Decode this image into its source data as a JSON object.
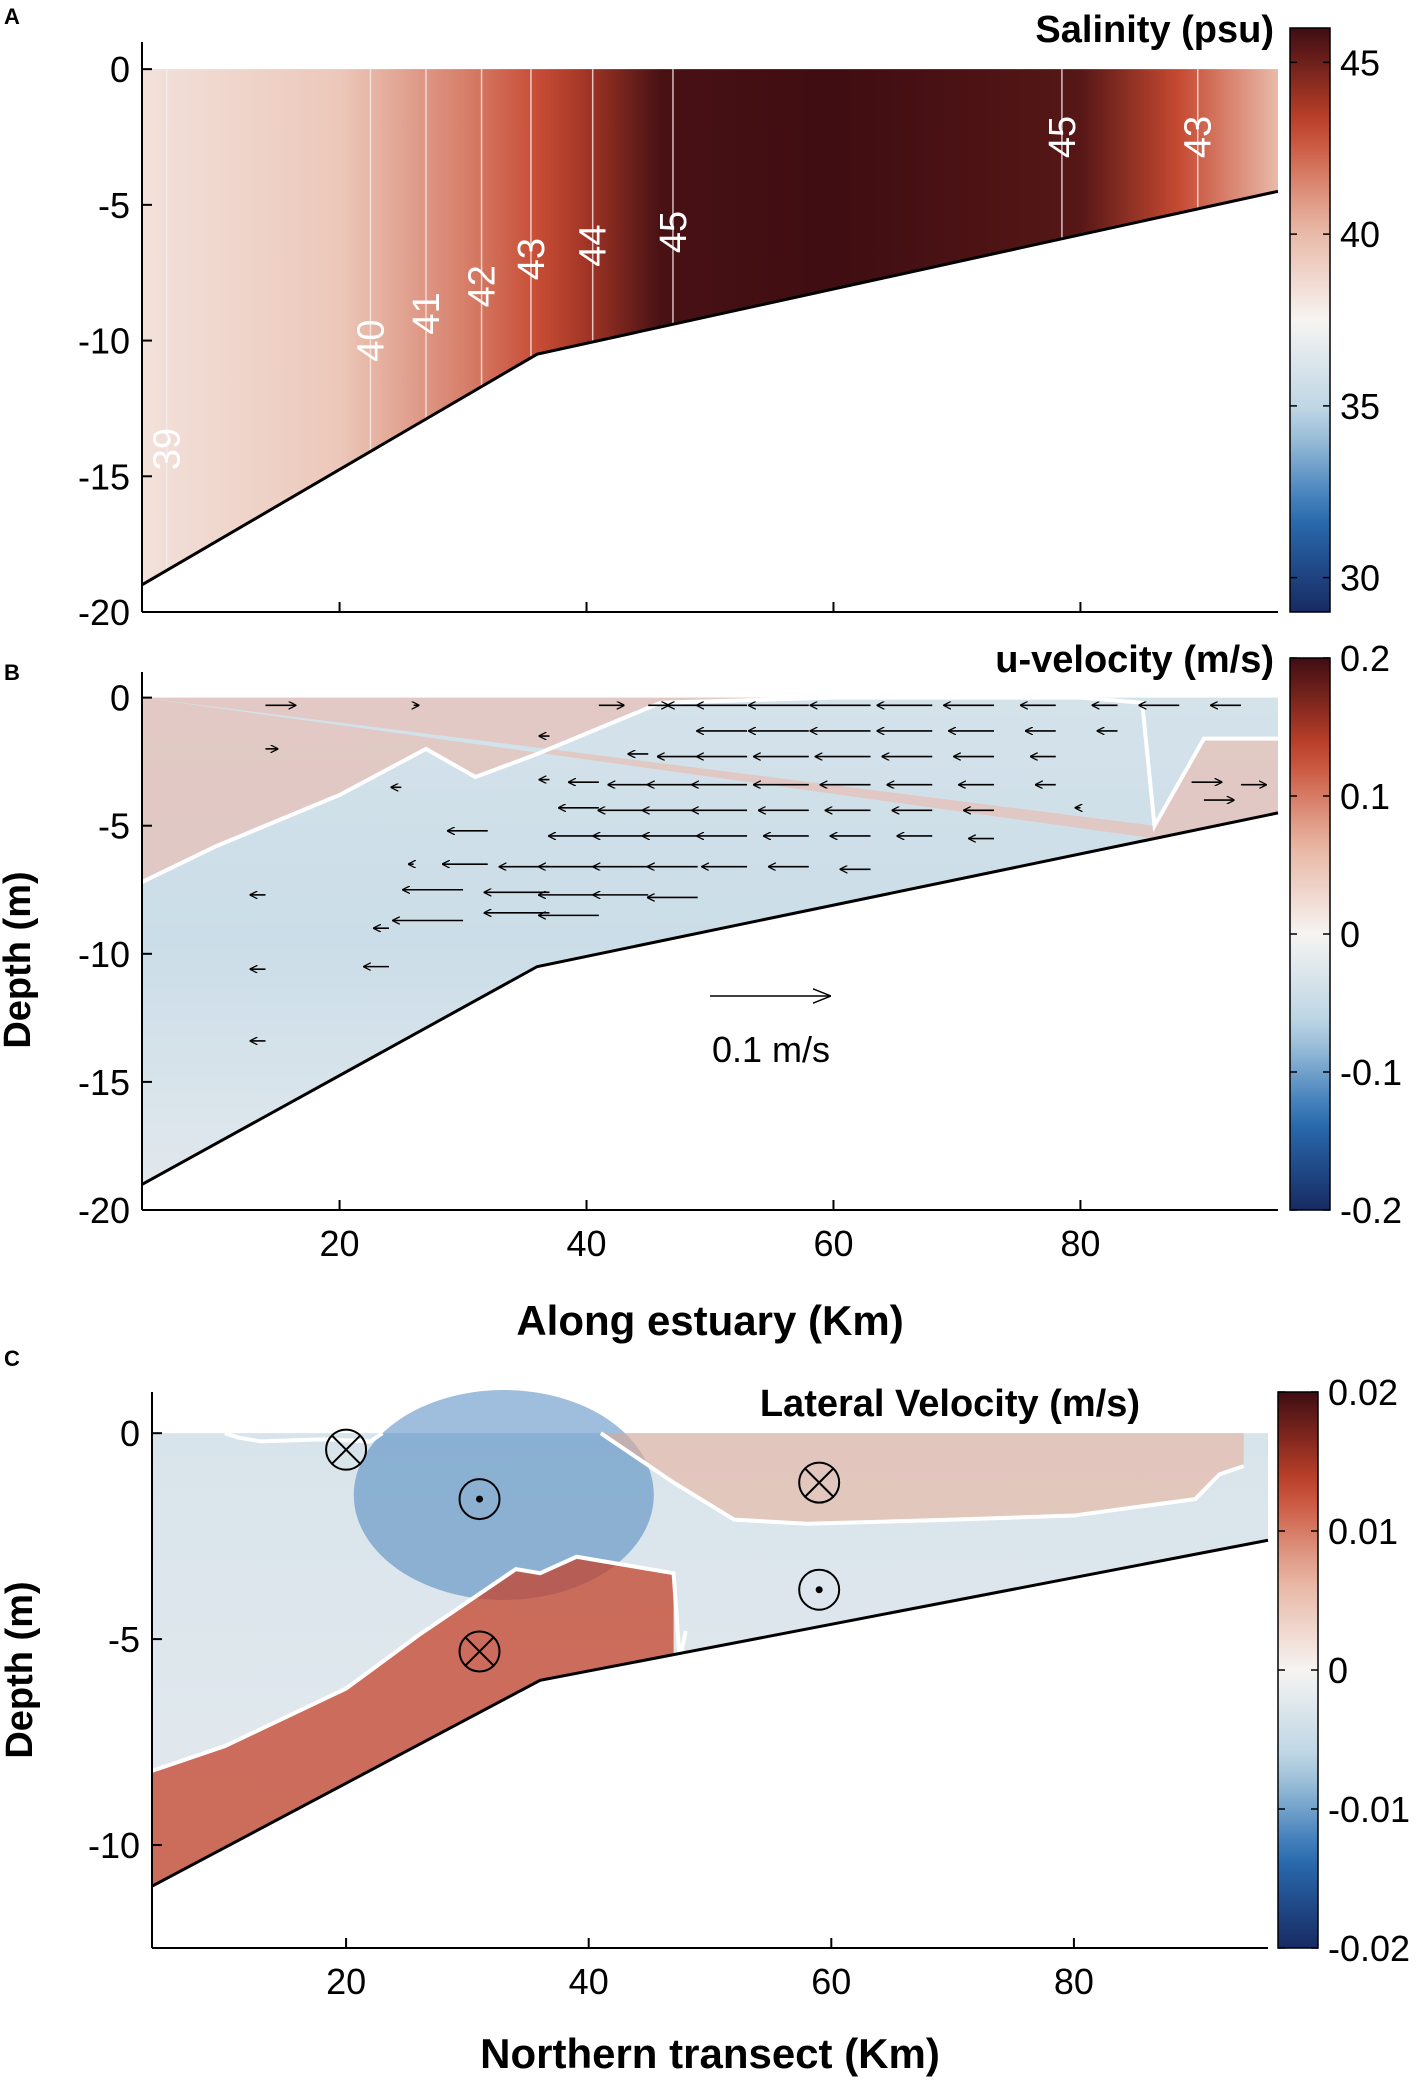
{
  "colors": {
    "neg_deep": "#182a63",
    "neg_mid": "#2a6fb3",
    "neg_light": "#b9d3e3",
    "neutral": "#f6f4f2",
    "pos_light": "#e7b29f",
    "pos_mid": "#c4432b",
    "pos_deep": "#3f0d12",
    "white": "#ffffff",
    "ink": "#000000",
    "contour": "#f4ecea"
  },
  "chart_data": [
    {
      "type": "heatmap",
      "panel_label": "A",
      "title": "Salinity (psu)",
      "xlabel": "",
      "ylabel": "",
      "xlim": [
        4,
        96
      ],
      "ylim": [
        -20,
        1
      ],
      "xticks": [
        20,
        40,
        60,
        80
      ],
      "yticks": [
        0,
        -5,
        -10,
        -15,
        -20
      ],
      "ytick_labels": [
        "0",
        "-5",
        "-10",
        "-15",
        "-20"
      ],
      "colorbar": {
        "min": 29,
        "max": 46,
        "ticks": [
          30,
          35,
          40,
          45
        ],
        "tick_labels": [
          "30",
          "35",
          "40",
          "45"
        ]
      },
      "bottom_profile": {
        "x": [
          4,
          36,
          96
        ],
        "depth": [
          -19,
          -10.5,
          -4.5
        ]
      },
      "field": {
        "x": [
          4,
          20,
          30,
          36,
          40,
          46,
          60,
          80,
          88,
          96
        ],
        "value": [
          38.3,
          39.4,
          41.6,
          42.9,
          43.9,
          45.8,
          46,
          45.5,
          43,
          40
        ]
      },
      "contours": [
        {
          "label": "39",
          "x": 6,
          "label_x": 6,
          "label_depth": -14
        },
        {
          "label": "40",
          "x": 22.5,
          "label_x": 22.5,
          "label_depth": -10
        },
        {
          "label": "41",
          "x": 27,
          "label_x": 27,
          "label_depth": -9
        },
        {
          "label": "42",
          "x": 31.5,
          "label_x": 31.5,
          "label_depth": -8
        },
        {
          "label": "43",
          "x": 35.5,
          "label_x": 35.5,
          "label_depth": -7
        },
        {
          "label": "44",
          "x": 40.5,
          "label_x": 40.5,
          "label_depth": -6.5
        },
        {
          "label": "45",
          "x": 47,
          "label_x": 47,
          "label_depth": -6
        },
        {
          "label": "45",
          "x": 78.5,
          "label_x": 78.5,
          "label_depth": -2.5
        },
        {
          "label": "43",
          "x": 89.5,
          "label_x": 89.5,
          "label_depth": -2.5
        }
      ]
    },
    {
      "type": "heatmap",
      "panel_label": "B",
      "title": "u-velocity (m/s)",
      "xlabel": "Along estuary (Km)",
      "ylabel": "Depth (m)",
      "xlim": [
        4,
        96
      ],
      "ylim": [
        -20,
        1
      ],
      "xticks": [
        20,
        40,
        60,
        80
      ],
      "xtick_labels": [
        "20",
        "40",
        "60",
        "80"
      ],
      "yticks": [
        0,
        -5,
        -10,
        -15,
        -20
      ],
      "ytick_labels": [
        "0",
        "-5",
        "-10",
        "-15",
        "-20"
      ],
      "colorbar": {
        "min": -0.2,
        "max": 0.2,
        "ticks": [
          0.2,
          0.1,
          0,
          -0.1,
          -0.2
        ],
        "tick_labels": [
          "0.2",
          "0.1",
          "0",
          "-0.1",
          "-0.2"
        ]
      },
      "bottom_profile": {
        "x": [
          4,
          36,
          96
        ],
        "depth": [
          -19,
          -10.5,
          -4.5
        ]
      },
      "zero_contour": {
        "x": [
          4,
          10,
          20,
          27,
          31,
          36,
          46,
          60,
          80,
          85,
          86,
          90,
          96
        ],
        "depth": [
          -7.2,
          -5.8,
          -3.8,
          -2,
          -3.1,
          -2.2,
          -0.2,
          0,
          0,
          -0.2,
          -5,
          -1.6,
          -1.6
        ]
      },
      "reference_vector": {
        "label": "0.1 m/s",
        "u": 0.1
      },
      "vectors": [
        {
          "x": 14,
          "depth": -0.3,
          "u": 0.03
        },
        {
          "x": 26,
          "depth": -0.3,
          "u": 0.005
        },
        {
          "x": 41,
          "depth": -0.3,
          "u": 0.025
        },
        {
          "x": 45,
          "depth": -0.3,
          "u": 0.02
        },
        {
          "x": 14,
          "depth": -2,
          "u": 0.012
        },
        {
          "x": 25,
          "depth": -3.5,
          "u": -0.01
        },
        {
          "x": 37,
          "depth": -1.5,
          "u": -0.01
        },
        {
          "x": 49,
          "depth": -0.3,
          "u": -0.03
        },
        {
          "x": 53,
          "depth": -0.3,
          "u": -0.05
        },
        {
          "x": 58,
          "depth": -0.3,
          "u": -0.06
        },
        {
          "x": 63,
          "depth": -0.3,
          "u": -0.06
        },
        {
          "x": 68,
          "depth": -0.3,
          "u": -0.055
        },
        {
          "x": 73,
          "depth": -0.3,
          "u": -0.05
        },
        {
          "x": 78,
          "depth": -0.3,
          "u": -0.035
        },
        {
          "x": 83,
          "depth": -0.3,
          "u": -0.025
        },
        {
          "x": 88,
          "depth": -0.3,
          "u": -0.04
        },
        {
          "x": 93,
          "depth": -0.3,
          "u": -0.03
        },
        {
          "x": 53,
          "depth": -1.3,
          "u": -0.05
        },
        {
          "x": 58,
          "depth": -1.3,
          "u": -0.06
        },
        {
          "x": 63,
          "depth": -1.3,
          "u": -0.06
        },
        {
          "x": 68,
          "depth": -1.3,
          "u": -0.055
        },
        {
          "x": 73,
          "depth": -1.3,
          "u": -0.045
        },
        {
          "x": 78,
          "depth": -1.3,
          "u": -0.03
        },
        {
          "x": 83,
          "depth": -1.3,
          "u": -0.02
        },
        {
          "x": 45,
          "depth": -2.2,
          "u": -0.02
        },
        {
          "x": 49,
          "depth": -2.3,
          "u": -0.04
        },
        {
          "x": 53,
          "depth": -2.3,
          "u": -0.05
        },
        {
          "x": 58,
          "depth": -2.3,
          "u": -0.055
        },
        {
          "x": 63,
          "depth": -2.3,
          "u": -0.055
        },
        {
          "x": 68,
          "depth": -2.3,
          "u": -0.05
        },
        {
          "x": 73,
          "depth": -2.3,
          "u": -0.04
        },
        {
          "x": 78,
          "depth": -2.3,
          "u": -0.025
        },
        {
          "x": 37,
          "depth": -3.2,
          "u": -0.01
        },
        {
          "x": 41,
          "depth": -3.3,
          "u": -0.03
        },
        {
          "x": 45,
          "depth": -3.4,
          "u": -0.04
        },
        {
          "x": 49,
          "depth": -3.4,
          "u": -0.05
        },
        {
          "x": 53,
          "depth": -3.4,
          "u": -0.055
        },
        {
          "x": 58,
          "depth": -3.4,
          "u": -0.055
        },
        {
          "x": 63,
          "depth": -3.4,
          "u": -0.05
        },
        {
          "x": 68,
          "depth": -3.4,
          "u": -0.045
        },
        {
          "x": 73,
          "depth": -3.4,
          "u": -0.035
        },
        {
          "x": 78,
          "depth": -3.4,
          "u": -0.02
        },
        {
          "x": 89,
          "depth": -3.3,
          "u": 0.03
        },
        {
          "x": 93,
          "depth": -3.4,
          "u": 0.025
        },
        {
          "x": 41,
          "depth": -4.3,
          "u": -0.04
        },
        {
          "x": 45,
          "depth": -4.4,
          "u": -0.05
        },
        {
          "x": 49,
          "depth": -4.4,
          "u": -0.055
        },
        {
          "x": 53,
          "depth": -4.4,
          "u": -0.055
        },
        {
          "x": 58,
          "depth": -4.4,
          "u": -0.05
        },
        {
          "x": 63,
          "depth": -4.4,
          "u": -0.045
        },
        {
          "x": 68,
          "depth": -4.4,
          "u": -0.04
        },
        {
          "x": 73,
          "depth": -4.4,
          "u": -0.03
        },
        {
          "x": 80,
          "depth": -4.3,
          "u": -0.005
        },
        {
          "x": 90,
          "depth": -4,
          "u": 0.03
        },
        {
          "x": 32,
          "depth": -5.2,
          "u": -0.04
        },
        {
          "x": 41,
          "depth": -5.4,
          "u": -0.05
        },
        {
          "x": 45,
          "depth": -5.4,
          "u": -0.055
        },
        {
          "x": 49,
          "depth": -5.4,
          "u": -0.055
        },
        {
          "x": 53,
          "depth": -5.4,
          "u": -0.05
        },
        {
          "x": 58,
          "depth": -5.4,
          "u": -0.045
        },
        {
          "x": 63,
          "depth": -5.4,
          "u": -0.04
        },
        {
          "x": 68,
          "depth": -5.4,
          "u": -0.035
        },
        {
          "x": 73,
          "depth": -5.5,
          "u": -0.025
        },
        {
          "x": 26,
          "depth": -6.5,
          "u": -0.005
        },
        {
          "x": 32,
          "depth": -6.5,
          "u": -0.045
        },
        {
          "x": 37,
          "depth": -6.6,
          "u": -0.05
        },
        {
          "x": 41,
          "depth": -6.6,
          "u": -0.06
        },
        {
          "x": 45,
          "depth": -6.6,
          "u": -0.055
        },
        {
          "x": 49,
          "depth": -6.6,
          "u": -0.05
        },
        {
          "x": 53,
          "depth": -6.6,
          "u": -0.045
        },
        {
          "x": 58,
          "depth": -6.6,
          "u": -0.04
        },
        {
          "x": 63,
          "depth": -6.7,
          "u": -0.03
        },
        {
          "x": 30,
          "depth": -7.5,
          "u": -0.06
        },
        {
          "x": 37,
          "depth": -7.6,
          "u": -0.065
        },
        {
          "x": 41,
          "depth": -7.7,
          "u": -0.06
        },
        {
          "x": 45,
          "depth": -7.7,
          "u": -0.055
        },
        {
          "x": 49,
          "depth": -7.8,
          "u": -0.05
        },
        {
          "x": 14,
          "depth": -7.7,
          "u": -0.015
        },
        {
          "x": 30,
          "depth": -8.7,
          "u": -0.07
        },
        {
          "x": 37,
          "depth": -8.4,
          "u": -0.065
        },
        {
          "x": 41,
          "depth": -8.5,
          "u": -0.06
        },
        {
          "x": 24,
          "depth": -9,
          "u": -0.015
        },
        {
          "x": 14,
          "depth": -10.6,
          "u": -0.015
        },
        {
          "x": 24,
          "depth": -10.5,
          "u": -0.025
        },
        {
          "x": 14,
          "depth": -13.4,
          "u": -0.015
        }
      ]
    },
    {
      "type": "heatmap",
      "panel_label": "C",
      "title": "Lateral Velocity (m/s)",
      "xlabel": "Northern transect (Km)",
      "ylabel": "Depth (m)",
      "xlim": [
        4,
        96
      ],
      "ylim": [
        -12.5,
        1
      ],
      "xticks": [
        20,
        40,
        60,
        80
      ],
      "xtick_labels": [
        "20",
        "40",
        "60",
        "80"
      ],
      "yticks": [
        0,
        -5,
        -10
      ],
      "ytick_labels": [
        "0",
        "-5",
        "-10"
      ],
      "colorbar": {
        "min": -0.02,
        "max": 0.02,
        "ticks": [
          0.02,
          0.01,
          0,
          -0.01,
          -0.02
        ],
        "tick_labels": [
          "0.02",
          "0.01",
          "0",
          "-0.01",
          "-0.02"
        ]
      },
      "bottom_profile": {
        "x": [
          4,
          36,
          96
        ],
        "depth": [
          -11,
          -6,
          -2.6
        ]
      },
      "zero_contours": [
        {
          "x": [
            10,
            11,
            13,
            18,
            22,
            23
          ],
          "depth": [
            0,
            -0.1,
            -0.2,
            -0.15,
            -0.2,
            0
          ]
        },
        {
          "x": [
            41,
            44,
            47,
            52,
            58,
            70,
            80,
            90,
            92,
            94
          ],
          "depth": [
            0,
            -0.6,
            -1.2,
            -2.1,
            -2.2,
            -2.1,
            -2,
            -1.6,
            -1,
            -0.8
          ]
        },
        {
          "x": [
            4,
            10,
            20,
            26,
            31,
            34,
            36,
            39,
            43,
            47,
            47.5,
            48
          ],
          "depth": [
            -8.2,
            -7.6,
            -6.2,
            -4.9,
            -3.9,
            -3.3,
            -3.4,
            -3,
            -3.2,
            -3.4,
            -5.5,
            -4.8
          ]
        }
      ],
      "markers": [
        {
          "symbol": "⊗",
          "x": 20,
          "depth": -0.4
        },
        {
          "symbol": "⊙",
          "x": 31,
          "depth": -1.6
        },
        {
          "symbol": "⊗",
          "x": 59,
          "depth": -1.2
        },
        {
          "symbol": "⊙",
          "x": 59,
          "depth": -3.8
        },
        {
          "symbol": "⊗",
          "x": 31,
          "depth": -5.3
        }
      ]
    }
  ]
}
